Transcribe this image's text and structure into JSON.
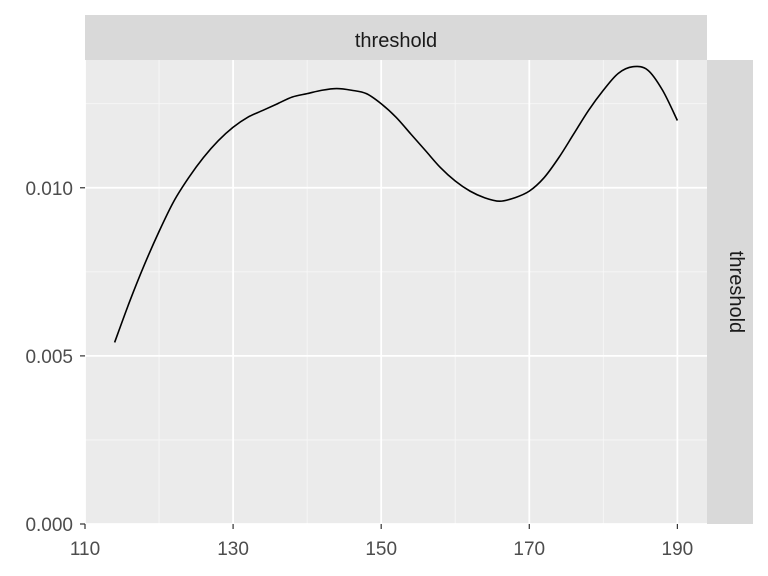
{
  "chart_data": {
    "type": "line",
    "facet_top_label": "threshold",
    "facet_right_label": "threshold",
    "xlabel": "",
    "ylabel": "",
    "xlim": [
      110,
      194
    ],
    "ylim": [
      0,
      0.0138
    ],
    "x_ticks": [
      110,
      130,
      150,
      170,
      190
    ],
    "x_tick_labels": [
      "110",
      "130",
      "150",
      "170",
      "190"
    ],
    "y_ticks": [
      0.0,
      0.005,
      0.01
    ],
    "y_tick_labels": [
      "0.000",
      "0.005",
      "0.010"
    ],
    "grid": true,
    "series": [
      {
        "x": [
          114,
          116,
          118,
          120,
          122,
          124,
          126,
          128,
          130,
          132,
          134,
          136,
          138,
          140,
          142,
          144,
          146,
          148,
          150,
          152,
          154,
          156,
          158,
          160,
          162,
          164,
          166,
          168,
          170,
          172,
          174,
          176,
          178,
          180,
          182,
          184,
          186,
          188,
          190
        ],
        "y": [
          0.0054,
          0.0066,
          0.0077,
          0.0087,
          0.0096,
          0.0103,
          0.0109,
          0.0114,
          0.0118,
          0.0121,
          0.0123,
          0.0125,
          0.0127,
          0.0128,
          0.0129,
          0.01295,
          0.0129,
          0.0128,
          0.0125,
          0.0121,
          0.0116,
          0.0111,
          0.0106,
          0.0102,
          0.0099,
          0.0097,
          0.0096,
          0.0097,
          0.0099,
          0.0103,
          0.0109,
          0.0116,
          0.0123,
          0.0129,
          0.0134,
          0.0136,
          0.0135,
          0.0129,
          0.012
        ]
      }
    ]
  }
}
